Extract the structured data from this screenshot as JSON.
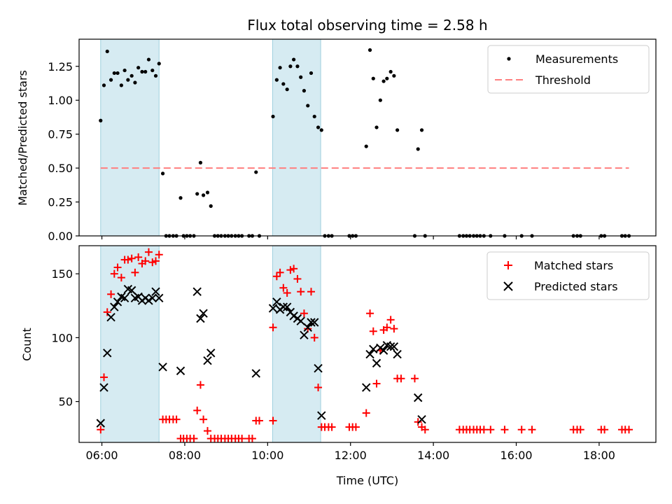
{
  "chart_data": [
    {
      "type": "scatter",
      "title": "Flux total observing time = 2.58 h",
      "xlabel": "",
      "ylabel": "Matched/Predicted stars",
      "x_unit": "hours UTC",
      "xlim": [
        5.45,
        19.37
      ],
      "ylim": [
        0,
        1.45
      ],
      "yticks": [
        0.0,
        0.25,
        0.5,
        0.75,
        1.0,
        1.25
      ],
      "ytick_labels": [
        "0.00",
        "0.25",
        "0.50",
        "0.75",
        "1.00",
        "1.25"
      ],
      "xticks": [
        6,
        8,
        10,
        12,
        14,
        16,
        18
      ],
      "grid": false,
      "legend_position": "top-right",
      "legend": [
        "Measurements",
        "Threshold"
      ],
      "shaded_intervals": [
        [
          5.97,
          7.38
        ],
        [
          10.12,
          11.28
        ]
      ],
      "shade_color": "#add8e6",
      "series": [
        {
          "name": "Measurements",
          "color": "#000000",
          "marker": "dot",
          "points": [
            [
              5.97,
              0.85
            ],
            [
              6.05,
              1.11
            ],
            [
              6.13,
              1.36
            ],
            [
              6.22,
              1.15
            ],
            [
              6.3,
              1.2
            ],
            [
              6.38,
              1.2
            ],
            [
              6.47,
              1.11
            ],
            [
              6.55,
              1.22
            ],
            [
              6.63,
              1.15
            ],
            [
              6.72,
              1.18
            ],
            [
              6.8,
              1.13
            ],
            [
              6.88,
              1.24
            ],
            [
              6.97,
              1.21
            ],
            [
              7.05,
              1.21
            ],
            [
              7.13,
              1.3
            ],
            [
              7.22,
              1.22
            ],
            [
              7.3,
              1.18
            ],
            [
              7.38,
              1.27
            ],
            [
              7.47,
              0.46
            ],
            [
              7.55,
              0
            ],
            [
              7.63,
              0
            ],
            [
              7.72,
              0
            ],
            [
              7.8,
              0
            ],
            [
              7.9,
              0.28
            ],
            [
              7.97,
              0
            ],
            [
              8.05,
              0
            ],
            [
              8.13,
              0
            ],
            [
              8.22,
              0
            ],
            [
              8.3,
              0.31
            ],
            [
              8.38,
              0.54
            ],
            [
              8.45,
              0.3
            ],
            [
              8.55,
              0.32
            ],
            [
              8.63,
              0.22
            ],
            [
              8.72,
              0
            ],
            [
              8.8,
              0
            ],
            [
              8.88,
              0
            ],
            [
              8.97,
              0
            ],
            [
              9.05,
              0
            ],
            [
              9.13,
              0
            ],
            [
              9.22,
              0
            ],
            [
              9.3,
              0
            ],
            [
              9.38,
              0
            ],
            [
              9.55,
              0
            ],
            [
              9.63,
              0
            ],
            [
              9.72,
              0.47
            ],
            [
              9.8,
              0
            ],
            [
              10.13,
              0.88
            ],
            [
              10.22,
              1.15
            ],
            [
              10.3,
              1.24
            ],
            [
              10.38,
              1.12
            ],
            [
              10.47,
              1.08
            ],
            [
              10.55,
              1.25
            ],
            [
              10.63,
              1.3
            ],
            [
              10.72,
              1.25
            ],
            [
              10.8,
              1.17
            ],
            [
              10.88,
              1.07
            ],
            [
              10.97,
              0.96
            ],
            [
              11.05,
              1.2
            ],
            [
              11.13,
              0.88
            ],
            [
              11.22,
              0.8
            ],
            [
              11.3,
              0.78
            ],
            [
              11.38,
              0
            ],
            [
              11.47,
              0
            ],
            [
              11.55,
              0
            ],
            [
              11.97,
              0
            ],
            [
              12.05,
              0
            ],
            [
              12.13,
              0
            ],
            [
              12.38,
              0.66
            ],
            [
              12.47,
              1.37
            ],
            [
              12.55,
              1.16
            ],
            [
              12.63,
              0.8
            ],
            [
              12.72,
              1.0
            ],
            [
              12.8,
              1.14
            ],
            [
              12.88,
              1.16
            ],
            [
              12.97,
              1.21
            ],
            [
              13.05,
              1.18
            ],
            [
              13.13,
              0.78
            ],
            [
              13.55,
              0
            ],
            [
              13.63,
              0.64
            ],
            [
              13.72,
              0.78
            ],
            [
              13.8,
              0
            ],
            [
              14.63,
              0
            ],
            [
              14.72,
              0
            ],
            [
              14.8,
              0
            ],
            [
              14.88,
              0
            ],
            [
              14.97,
              0
            ],
            [
              15.05,
              0
            ],
            [
              15.13,
              0
            ],
            [
              15.22,
              0
            ],
            [
              15.38,
              0
            ],
            [
              15.72,
              0
            ],
            [
              16.13,
              0
            ],
            [
              16.38,
              0
            ],
            [
              17.38,
              0
            ],
            [
              17.47,
              0
            ],
            [
              17.55,
              0
            ],
            [
              18.05,
              0
            ],
            [
              18.13,
              0
            ],
            [
              18.55,
              0
            ],
            [
              18.63,
              0
            ],
            [
              18.72,
              0
            ]
          ]
        },
        {
          "name": "Threshold",
          "color": "#ff7f7f",
          "style": "dashed",
          "points": [
            [
              5.97,
              0.5
            ],
            [
              18.72,
              0.5
            ]
          ]
        }
      ]
    },
    {
      "type": "scatter",
      "title": "",
      "xlabel": "Time (UTC)",
      "ylabel": "Count",
      "x_unit": "hours UTC",
      "xlim": [
        5.45,
        19.37
      ],
      "ylim": [
        18,
        172
      ],
      "yticks": [
        50,
        100,
        150
      ],
      "ytick_labels": [
        "50",
        "100",
        "150"
      ],
      "xticks": [
        6,
        8,
        10,
        12,
        14,
        16,
        18
      ],
      "xtick_labels": [
        "06:00",
        "08:00",
        "10:00",
        "12:00",
        "14:00",
        "16:00",
        "18:00"
      ],
      "grid": false,
      "legend_position": "top-right",
      "legend": [
        "Matched stars",
        "Predicted stars"
      ],
      "shaded_intervals": [
        [
          5.97,
          7.38
        ],
        [
          10.12,
          11.28
        ]
      ],
      "shade_color": "#add8e6",
      "series": [
        {
          "name": "Matched stars",
          "color": "#ff0000",
          "marker": "plus",
          "points": [
            [
              5.97,
              28
            ],
            [
              6.05,
              69
            ],
            [
              6.13,
              120
            ],
            [
              6.22,
              134
            ],
            [
              6.3,
              150
            ],
            [
              6.38,
              155
            ],
            [
              6.47,
              147
            ],
            [
              6.55,
              161
            ],
            [
              6.63,
              161
            ],
            [
              6.72,
              162
            ],
            [
              6.8,
              151
            ],
            [
              6.88,
              163
            ],
            [
              6.97,
              158
            ],
            [
              7.05,
              160
            ],
            [
              7.13,
              167
            ],
            [
              7.22,
              159
            ],
            [
              7.3,
              160
            ],
            [
              7.38,
              165
            ],
            [
              7.47,
              36
            ],
            [
              7.55,
              36
            ],
            [
              7.63,
              36
            ],
            [
              7.72,
              36
            ],
            [
              7.8,
              36
            ],
            [
              7.9,
              21
            ],
            [
              7.97,
              21
            ],
            [
              8.05,
              21
            ],
            [
              8.13,
              21
            ],
            [
              8.22,
              21
            ],
            [
              8.3,
              43
            ],
            [
              8.38,
              63
            ],
            [
              8.45,
              36
            ],
            [
              8.55,
              27
            ],
            [
              8.63,
              21
            ],
            [
              8.72,
              21
            ],
            [
              8.8,
              21
            ],
            [
              8.88,
              21
            ],
            [
              8.97,
              21
            ],
            [
              9.05,
              21
            ],
            [
              9.13,
              21
            ],
            [
              9.22,
              21
            ],
            [
              9.3,
              21
            ],
            [
              9.38,
              21
            ],
            [
              9.55,
              21
            ],
            [
              9.63,
              21
            ],
            [
              9.72,
              35
            ],
            [
              9.8,
              35
            ],
            [
              10.13,
              35
            ],
            [
              10.13,
              108
            ],
            [
              10.22,
              148
            ],
            [
              10.3,
              151
            ],
            [
              10.38,
              139
            ],
            [
              10.47,
              135
            ],
            [
              10.55,
              153
            ],
            [
              10.63,
              154
            ],
            [
              10.72,
              146
            ],
            [
              10.8,
              136
            ],
            [
              10.88,
              119
            ],
            [
              10.97,
              107
            ],
            [
              11.05,
              136
            ],
            [
              11.13,
              100
            ],
            [
              11.22,
              61
            ],
            [
              11.3,
              30
            ],
            [
              11.38,
              30
            ],
            [
              11.47,
              30
            ],
            [
              11.55,
              30
            ],
            [
              11.97,
              30
            ],
            [
              12.05,
              30
            ],
            [
              12.13,
              30
            ],
            [
              12.38,
              41
            ],
            [
              12.47,
              119
            ],
            [
              12.55,
              105
            ],
            [
              12.63,
              64
            ],
            [
              12.72,
              90
            ],
            [
              12.8,
              106
            ],
            [
              12.88,
              108
            ],
            [
              12.97,
              114
            ],
            [
              13.05,
              107
            ],
            [
              13.13,
              68
            ],
            [
              13.22,
              68
            ],
            [
              13.55,
              68
            ],
            [
              13.63,
              34
            ],
            [
              13.72,
              30
            ],
            [
              13.8,
              28
            ],
            [
              14.63,
              28
            ],
            [
              14.72,
              28
            ],
            [
              14.8,
              28
            ],
            [
              14.88,
              28
            ],
            [
              14.97,
              28
            ],
            [
              15.05,
              28
            ],
            [
              15.13,
              28
            ],
            [
              15.22,
              28
            ],
            [
              15.38,
              28
            ],
            [
              15.72,
              28
            ],
            [
              16.13,
              28
            ],
            [
              16.38,
              28
            ],
            [
              17.38,
              28
            ],
            [
              17.47,
              28
            ],
            [
              17.55,
              28
            ],
            [
              18.05,
              28
            ],
            [
              18.13,
              28
            ],
            [
              18.55,
              28
            ],
            [
              18.63,
              28
            ],
            [
              18.72,
              28
            ]
          ]
        },
        {
          "name": "Predicted stars",
          "color": "#000000",
          "marker": "x",
          "points": [
            [
              5.97,
              33
            ],
            [
              6.05,
              61
            ],
            [
              6.13,
              88
            ],
            [
              6.22,
              116
            ],
            [
              6.3,
              124
            ],
            [
              6.38,
              128
            ],
            [
              6.47,
              132
            ],
            [
              6.55,
              131
            ],
            [
              6.63,
              138
            ],
            [
              6.72,
              137
            ],
            [
              6.8,
              131
            ],
            [
              6.88,
              132
            ],
            [
              6.97,
              129
            ],
            [
              7.05,
              131
            ],
            [
              7.13,
              129
            ],
            [
              7.22,
              131
            ],
            [
              7.3,
              136
            ],
            [
              7.38,
              131
            ],
            [
              7.47,
              77
            ],
            [
              7.9,
              74
            ],
            [
              8.3,
              136
            ],
            [
              8.38,
              115
            ],
            [
              8.45,
              119
            ],
            [
              8.55,
              82
            ],
            [
              8.63,
              88
            ],
            [
              9.72,
              72
            ],
            [
              10.13,
              123
            ],
            [
              10.22,
              128
            ],
            [
              10.3,
              122
            ],
            [
              10.38,
              124
            ],
            [
              10.47,
              124
            ],
            [
              10.55,
              120
            ],
            [
              10.63,
              117
            ],
            [
              10.72,
              115
            ],
            [
              10.8,
              113
            ],
            [
              10.88,
              102
            ],
            [
              10.97,
              108
            ],
            [
              11.05,
              112
            ],
            [
              11.13,
              112
            ],
            [
              11.22,
              76
            ],
            [
              11.3,
              39
            ],
            [
              12.38,
              61
            ],
            [
              12.47,
              87
            ],
            [
              12.55,
              91
            ],
            [
              12.63,
              80
            ],
            [
              12.72,
              92
            ],
            [
              12.8,
              90
            ],
            [
              12.88,
              94
            ],
            [
              12.97,
              93
            ],
            [
              13.05,
              93
            ],
            [
              13.13,
              87
            ],
            [
              13.63,
              53
            ],
            [
              13.72,
              36
            ]
          ]
        }
      ]
    }
  ]
}
